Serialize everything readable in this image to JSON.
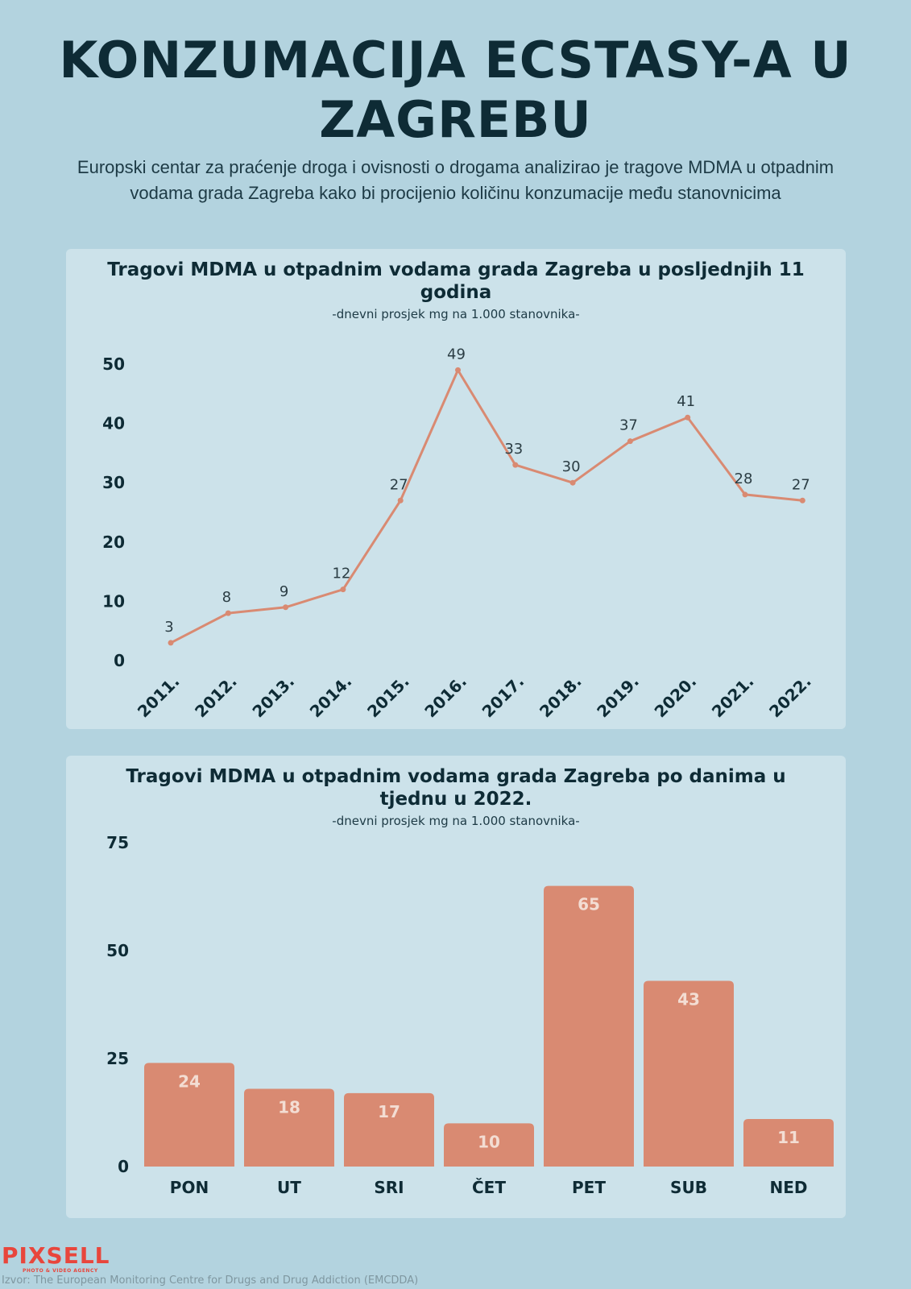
{
  "header": {
    "title": "KONZUMACIJA ECSTASY-A U ZAGREBU",
    "intro": "Europski centar za praćenje droga i ovisnosti o drogama analizirao je tragove MDMA u otpadnim vodama grada Zagreba kako bi procijenio količinu konzumacije među stanovnicima"
  },
  "chart_data": [
    {
      "type": "line",
      "title": "Tragovi MDMA u otpadnim vodama grada Zagreba u posljednjih 11 godina",
      "subtitle": "-dnevni prosjek mg na 1.000 stanovnika-",
      "categories": [
        "2011.",
        "2012.",
        "2013.",
        "2014.",
        "2015.",
        "2016.",
        "2017.",
        "2018.",
        "2019.",
        "2020.",
        "2021.",
        "2022."
      ],
      "values": [
        3,
        8,
        9,
        12,
        27,
        49,
        33,
        30,
        37,
        41,
        28,
        27
      ],
      "yticks": [
        0,
        10,
        20,
        30,
        40,
        50
      ],
      "ylim": [
        0,
        50
      ],
      "grid": false,
      "color": "#d98a72"
    },
    {
      "type": "bar",
      "title": "Tragovi MDMA u otpadnim vodama grada Zagreba po danima u tjednu u 2022.",
      "subtitle": "-dnevni prosjek mg na 1.000 stanovnika-",
      "categories": [
        "PON",
        "UT",
        "SRI",
        "ČET",
        "PET",
        "SUB",
        "NED"
      ],
      "values": [
        24,
        18,
        17,
        10,
        65,
        43,
        11
      ],
      "yticks": [
        0,
        25,
        50,
        75
      ],
      "ylim": [
        0,
        75
      ],
      "grid": false,
      "color": "#d98a72"
    }
  ],
  "footer": {
    "brand": "PIXSELL",
    "brand_tagline": "PHOTO & VIDEO AGENCY",
    "source": "Izvor: The European Monitoring Centre for Drugs and Drug Addiction (EMCDDA)"
  }
}
